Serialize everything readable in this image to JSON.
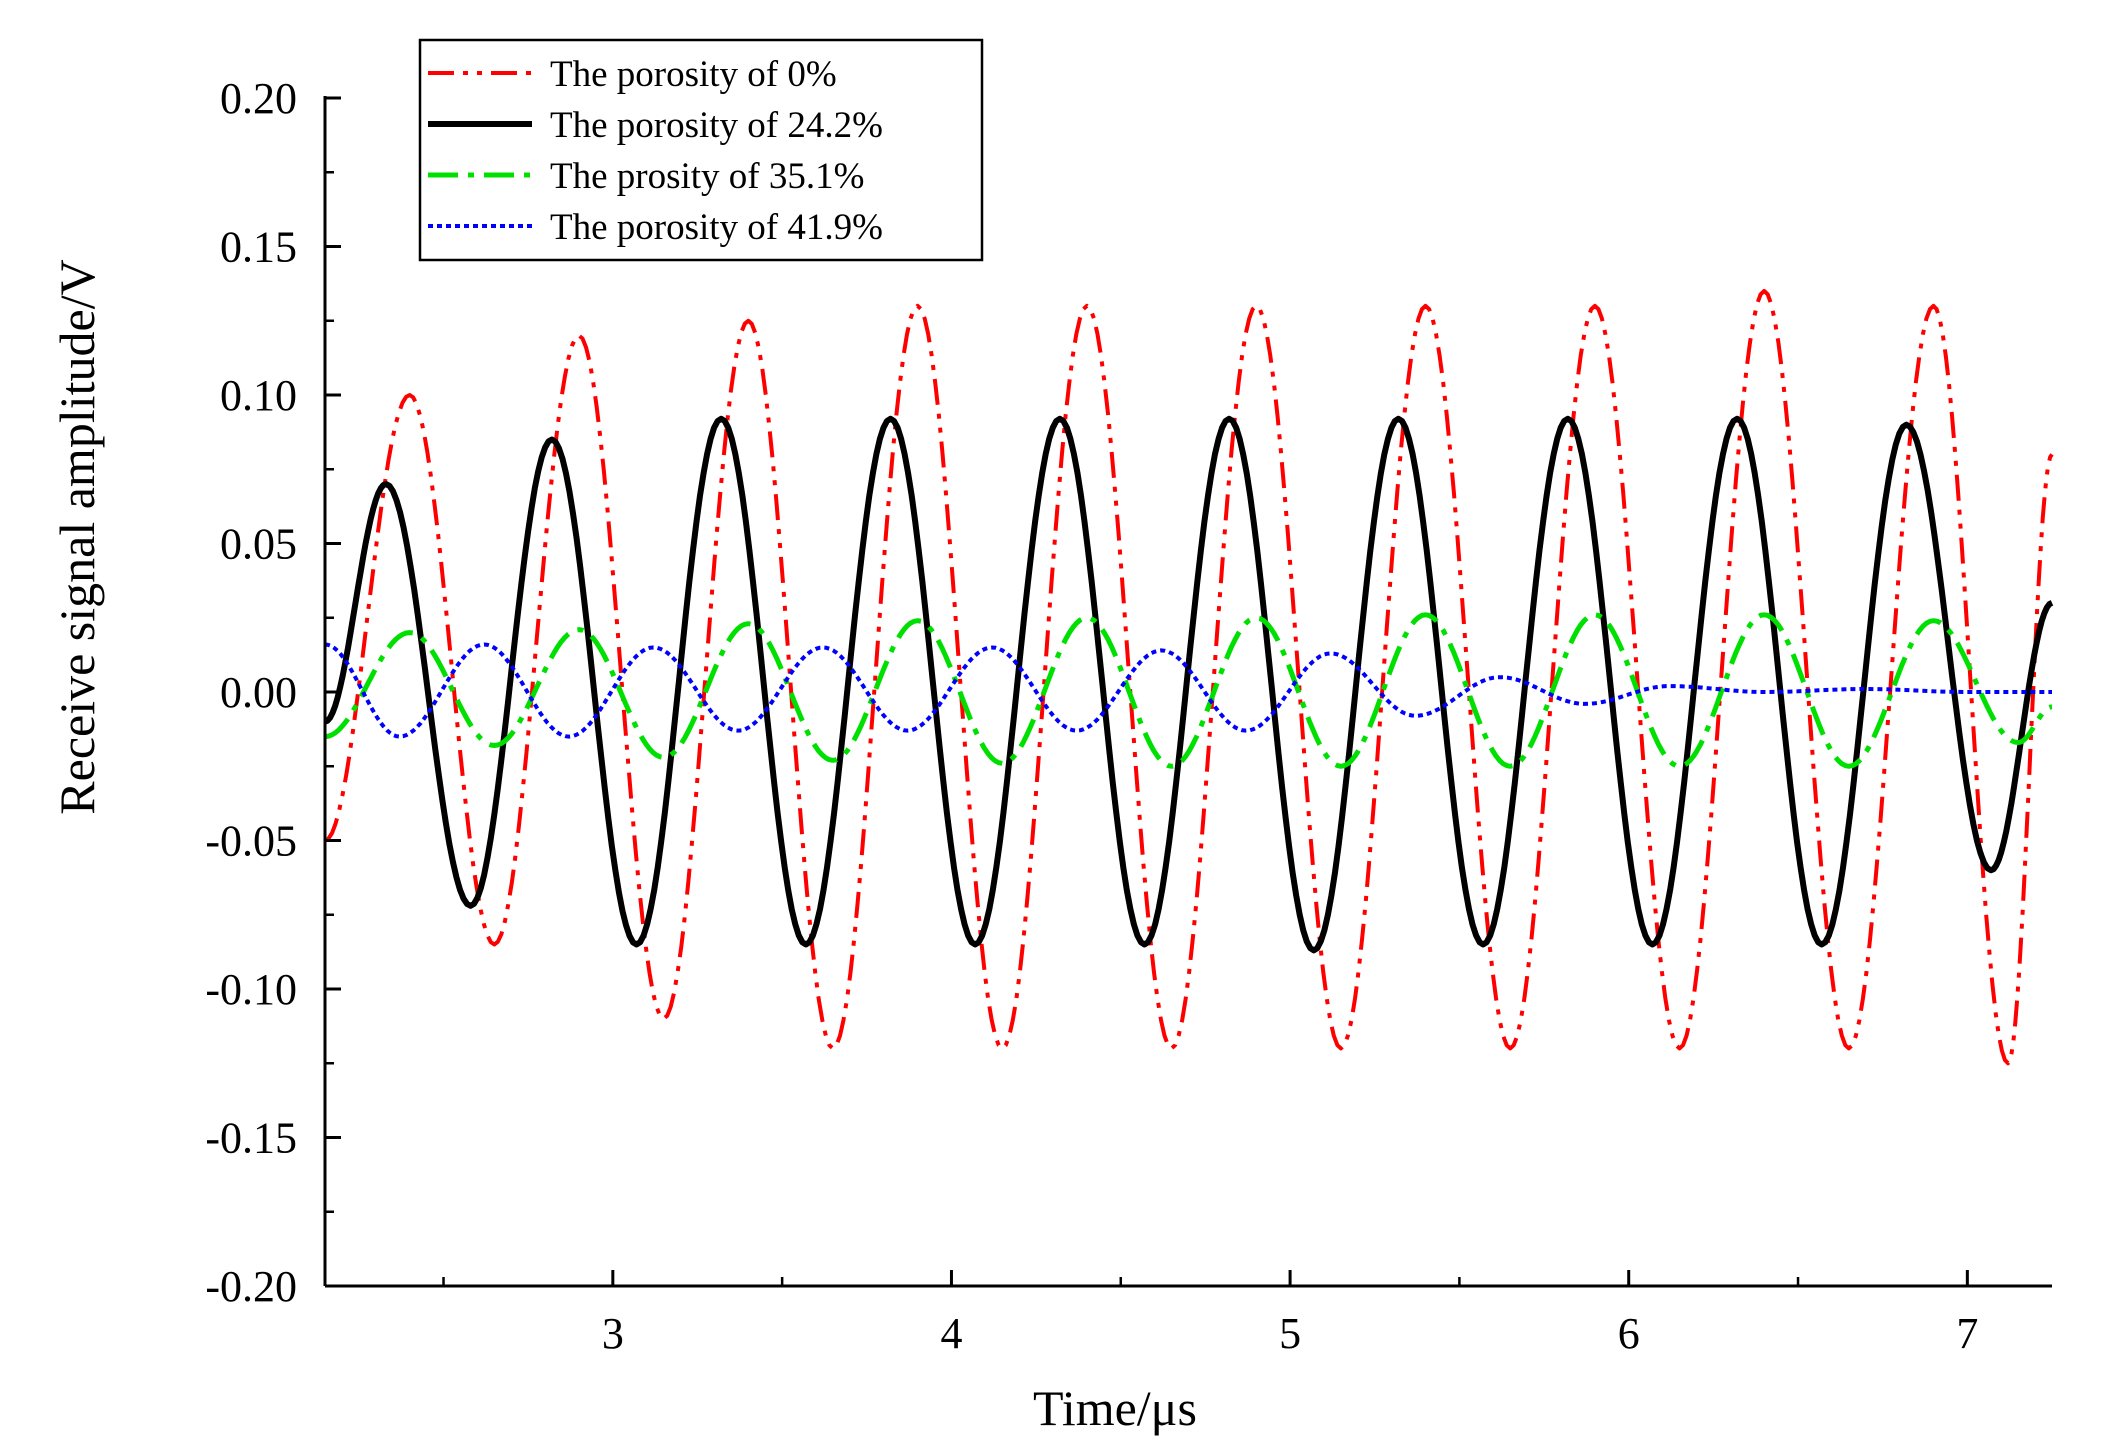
{
  "chart_data": {
    "type": "line",
    "title": "",
    "xlabel": "Time/μs",
    "ylabel": "Receive signal amplitude/V",
    "xlim": [
      2.15,
      7.25
    ],
    "ylim": [
      -0.2,
      0.2
    ],
    "xticks": [
      3,
      4,
      5,
      6,
      7
    ],
    "xtick_labels": [
      "3",
      "4",
      "5",
      "6",
      "7"
    ],
    "yticks": [
      -0.2,
      -0.15,
      -0.1,
      -0.05,
      0.0,
      0.05,
      0.1,
      0.15,
      0.2
    ],
    "ytick_labels": [
      "-0.20",
      "-0.15",
      "-0.10",
      "-0.05",
      "0.00",
      "0.05",
      "0.10",
      "0.15",
      "0.20"
    ],
    "grid": false,
    "legend_position": "top-left",
    "series": [
      {
        "name": "The porosity of 0%",
        "color": "#ff0000",
        "dash": "dash-dot-dot",
        "x": [
          2.15,
          2.4,
          2.65,
          2.9,
          3.15,
          3.4,
          3.65,
          3.9,
          4.15,
          4.4,
          4.65,
          4.9,
          5.15,
          5.4,
          5.65,
          5.9,
          6.15,
          6.4,
          6.65,
          6.9,
          7.12,
          7.25
        ],
        "y": [
          -0.05,
          0.1,
          -0.085,
          0.12,
          -0.11,
          0.125,
          -0.12,
          0.13,
          -0.12,
          0.13,
          -0.12,
          0.13,
          -0.12,
          0.13,
          -0.12,
          0.13,
          -0.12,
          0.135,
          -0.12,
          0.13,
          -0.125,
          0.08
        ]
      },
      {
        "name": "The porosity of 24.2%",
        "color": "#000000",
        "dash": "solid",
        "x": [
          2.15,
          2.33,
          2.58,
          2.82,
          3.07,
          3.32,
          3.57,
          3.82,
          4.07,
          4.32,
          4.57,
          4.82,
          5.07,
          5.32,
          5.57,
          5.82,
          6.07,
          6.32,
          6.57,
          6.82,
          7.07,
          7.25
        ],
        "y": [
          -0.01,
          0.07,
          -0.072,
          0.085,
          -0.085,
          0.092,
          -0.085,
          0.092,
          -0.085,
          0.092,
          -0.085,
          0.092,
          -0.087,
          0.092,
          -0.085,
          0.092,
          -0.085,
          0.092,
          -0.085,
          0.09,
          -0.06,
          0.03
        ]
      },
      {
        "name": "The prosity of 35.1%",
        "color": "#00e000",
        "dash": "dash-dot",
        "x": [
          2.15,
          2.4,
          2.65,
          2.9,
          3.15,
          3.4,
          3.65,
          3.9,
          4.15,
          4.4,
          4.65,
          4.9,
          5.15,
          5.4,
          5.65,
          5.9,
          6.15,
          6.4,
          6.65,
          6.9,
          7.15,
          7.25
        ],
        "y": [
          -0.015,
          0.02,
          -0.018,
          0.021,
          -0.022,
          0.023,
          -0.023,
          0.024,
          -0.024,
          0.025,
          -0.025,
          0.025,
          -0.025,
          0.026,
          -0.025,
          0.026,
          -0.025,
          0.026,
          -0.025,
          0.024,
          -0.017,
          -0.005
        ]
      },
      {
        "name": "The porosity of 41.9%",
        "color": "#0000ff",
        "dash": "dotted",
        "x": [
          2.15,
          2.37,
          2.62,
          2.87,
          3.12,
          3.37,
          3.62,
          3.87,
          4.12,
          4.37,
          4.62,
          4.87,
          5.12,
          5.37,
          5.62,
          5.87,
          6.12,
          6.4,
          6.7,
          7.0,
          7.25
        ],
        "y": [
          0.016,
          -0.015,
          0.016,
          -0.015,
          0.015,
          -0.013,
          0.015,
          -0.013,
          0.015,
          -0.013,
          0.014,
          -0.013,
          0.013,
          -0.008,
          0.005,
          -0.004,
          0.002,
          0.0,
          0.001,
          0.0,
          0.0
        ]
      }
    ]
  }
}
